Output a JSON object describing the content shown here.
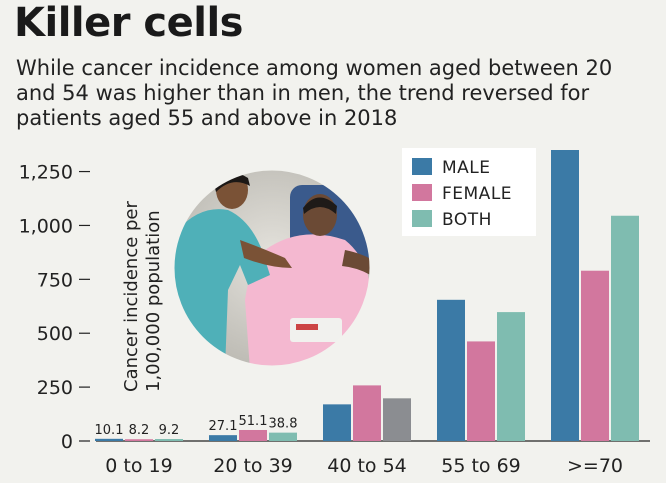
{
  "title": "Killer cells",
  "subtitle": "While cancer incidence among women aged between 20 and 54 was higher than in men, the trend reversed for patients aged 55 and above in 2018",
  "colors": {
    "male": "#3b7aa6",
    "female": "#d2779e",
    "both": "#7fbcb0",
    "both_highlight": "#8b8d91"
  },
  "chart_data": {
    "type": "bar",
    "categories": [
      "0 to 19",
      "20 to 39",
      "40 to 54",
      "55 to 69",
      ">=70"
    ],
    "series": [
      {
        "name": "MALE",
        "values": [
          10.1,
          27.1,
          170,
          655,
          1350
        ]
      },
      {
        "name": "FEMALE",
        "values": [
          8.2,
          51.1,
          258,
          462,
          790
        ]
      },
      {
        "name": "BOTH",
        "values": [
          9.2,
          38.8,
          198,
          598,
          1045
        ]
      }
    ],
    "value_labels": [
      [
        "10.1",
        "8.2",
        "9.2"
      ],
      [
        "27.1",
        "51.1",
        "38.8"
      ]
    ],
    "ylabel_lines": [
      "Cancer incidence per",
      "1,00,000 population"
    ],
    "yticks": [
      0,
      250,
      500,
      750,
      1000,
      1250
    ],
    "ytick_labels": [
      "0",
      "250",
      "500",
      "750",
      "1,000",
      "1,250"
    ],
    "ylim": [
      0,
      1350
    ],
    "grid": false,
    "legend_position": "top-right",
    "highlight": {
      "category": "40 to 54",
      "series": "BOTH",
      "color": "grey"
    }
  }
}
